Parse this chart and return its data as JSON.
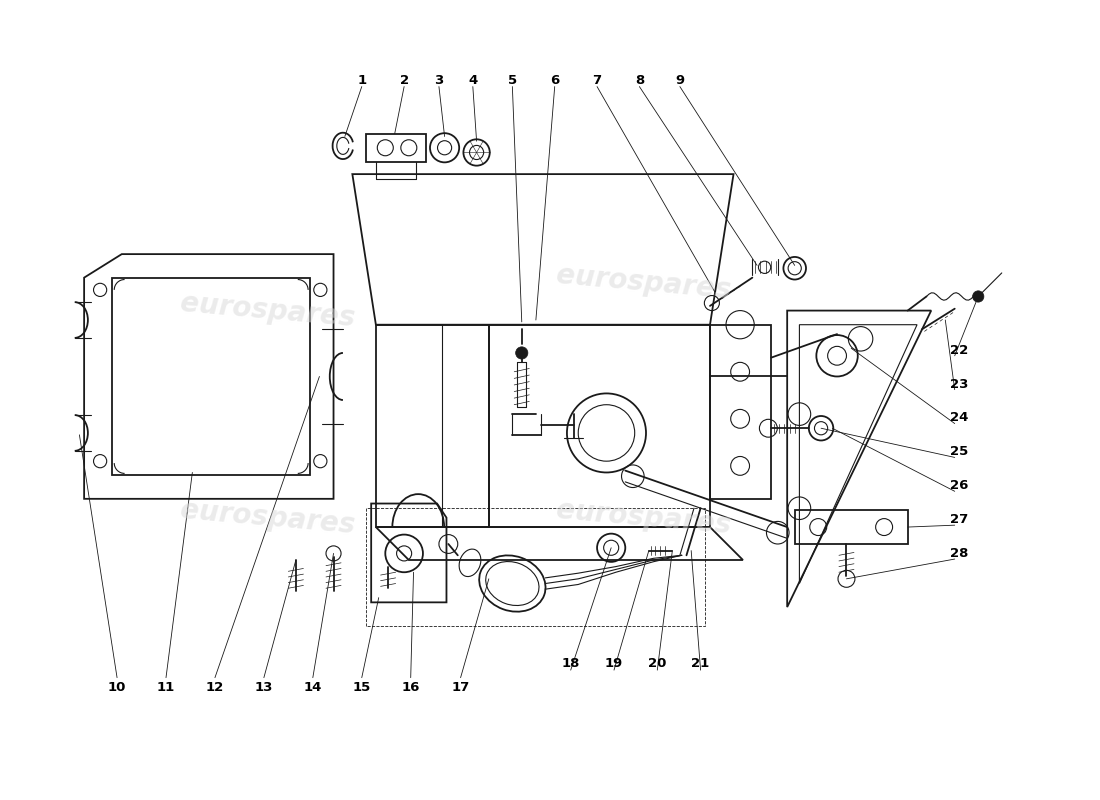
{
  "bg_color": "#ffffff",
  "line_color": "#1a1a1a",
  "watermark_color": "#d8d8d8",
  "watermark_text": "eurospares",
  "label_color": "#000000",
  "part_numbers": [
    1,
    2,
    3,
    4,
    5,
    6,
    7,
    8,
    9,
    10,
    11,
    12,
    13,
    14,
    15,
    16,
    17,
    18,
    19,
    20,
    21,
    22,
    23,
    24,
    25,
    26,
    27,
    28
  ],
  "label_positions_x": [
    3.5,
    3.95,
    4.32,
    4.68,
    5.1,
    5.55,
    6.0,
    6.45,
    6.88,
    0.9,
    1.42,
    1.94,
    2.46,
    2.98,
    3.5,
    4.02,
    4.55,
    5.72,
    6.18,
    6.64,
    7.1,
    9.85,
    9.85,
    9.85,
    9.85,
    9.85,
    9.85,
    9.85
  ],
  "label_positions_y": [
    7.65,
    7.65,
    7.65,
    7.65,
    7.65,
    7.65,
    7.65,
    7.65,
    7.65,
    1.2,
    1.2,
    1.2,
    1.2,
    1.2,
    1.2,
    1.2,
    1.2,
    1.45,
    1.45,
    1.45,
    1.45,
    4.78,
    4.42,
    4.06,
    3.7,
    3.34,
    2.98,
    2.62
  ]
}
